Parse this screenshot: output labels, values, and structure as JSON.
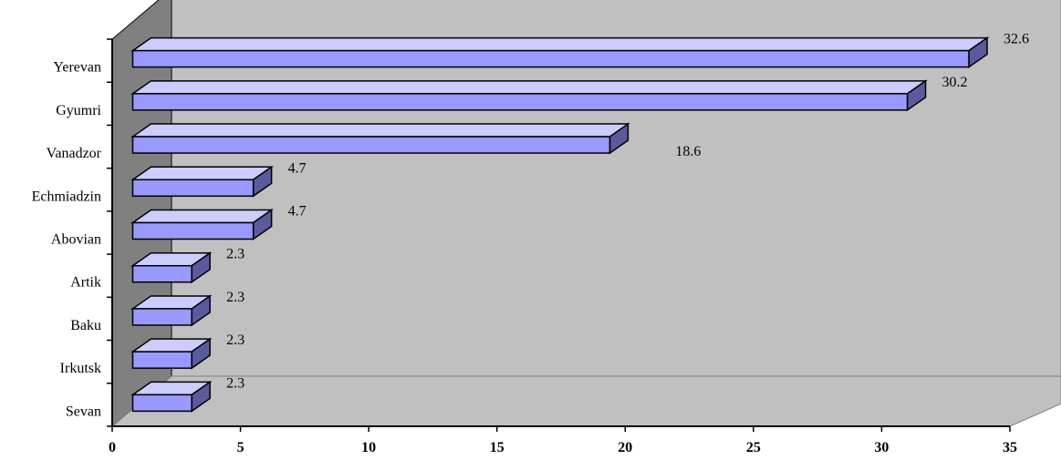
{
  "chart_data": {
    "type": "bar",
    "orientation": "horizontal",
    "three_d": true,
    "categories": [
      "Yerevan",
      "Gyumri",
      "Vanadzor",
      "Echmiadzin",
      "Abovian",
      "Artik",
      "Baku",
      "Irkutsk",
      "Sevan"
    ],
    "values": [
      32.6,
      30.2,
      18.6,
      4.7,
      4.7,
      2.3,
      2.3,
      2.3,
      2.3
    ],
    "data_labels": [
      "32.6",
      "30.2",
      "18.6",
      "4.7",
      "4.7",
      "2.3",
      "2.3",
      "2.3",
      "2.3"
    ],
    "xlim": [
      0,
      35
    ],
    "x_ticks": [
      "0",
      "5",
      "10",
      "15",
      "20",
      "25",
      "30",
      "35"
    ],
    "title": "",
    "xlabel": "",
    "ylabel": "",
    "grid": false,
    "legend": "none",
    "colors": {
      "bar_front": "#9999ff",
      "bar_top": "#ccccff",
      "bar_side": "#5a5a9c",
      "back_wall": "#c0c0c0",
      "side_wall": "#808080",
      "floor": "#c0c0c0"
    }
  }
}
